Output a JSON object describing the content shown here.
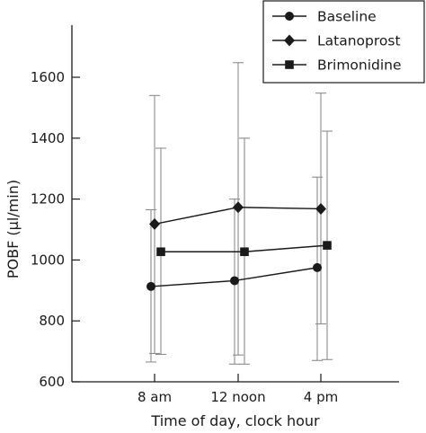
{
  "chart_data": {
    "type": "line",
    "xlabel": "Time of day, clock hour",
    "ylabel": "POBF (µl/min)",
    "categories": [
      "8 am",
      "12 noon",
      "4 pm"
    ],
    "ylim": [
      600,
      1700
    ],
    "yticks": [
      600,
      800,
      1000,
      1200,
      1400,
      1600
    ],
    "grid": false,
    "legend_position": "top-right",
    "series": [
      {
        "name": "Baseline",
        "marker": "circle",
        "values": [
          913,
          932,
          975
        ],
        "error_low": [
          665,
          658,
          670
        ],
        "error_high": [
          1165,
          1200,
          1272
        ]
      },
      {
        "name": "Latanoprost",
        "marker": "diamond",
        "values": [
          1118,
          1173,
          1168
        ],
        "error_low": [
          693,
          688,
          790
        ],
        "error_high": [
          1540,
          1648,
          1548
        ]
      },
      {
        "name": "Brimonidine",
        "marker": "square",
        "values": [
          1027,
          1027,
          1048
        ],
        "error_low": [
          690,
          658,
          673
        ],
        "error_high": [
          1367,
          1400,
          1423
        ]
      }
    ]
  },
  "colors": {
    "ink": "#1a1a1a",
    "error_bar": "#8c8c8c",
    "background": "#ffffff"
  }
}
